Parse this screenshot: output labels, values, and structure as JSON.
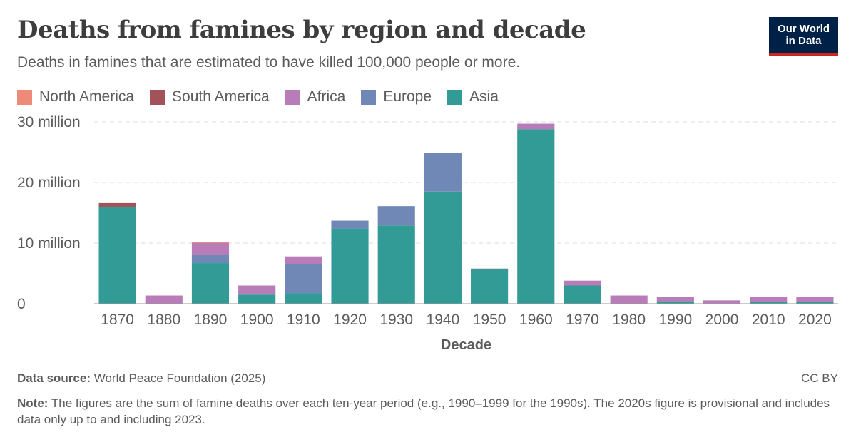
{
  "header": {
    "title": "Deaths from famines by region and decade",
    "subtitle": "Deaths in famines that are estimated to have killed 100,000 people or more.",
    "logo_line1": "Our World",
    "logo_line2": "in Data",
    "logo_bg": "#002147",
    "logo_accent": "#ce261e"
  },
  "legend": [
    {
      "label": "North America",
      "color": "#ee8b78"
    },
    {
      "label": "South America",
      "color": "#a2535a"
    },
    {
      "label": "Africa",
      "color": "#b87db8"
    },
    {
      "label": "Europe",
      "color": "#7088b5"
    },
    {
      "label": "Asia",
      "color": "#329b96"
    }
  ],
  "chart_data": {
    "type": "bar",
    "stacked": true,
    "xlabel": "Decade",
    "ylabel": "",
    "ylim": [
      0,
      30000000
    ],
    "yticks": [
      0,
      10000000,
      20000000,
      30000000
    ],
    "ytick_labels": [
      "0",
      "10 million",
      "20 million",
      "30 million"
    ],
    "grid": true,
    "legend_position": "top-left",
    "categories": [
      "1870",
      "1880",
      "1890",
      "1900",
      "1910",
      "1920",
      "1930",
      "1940",
      "1950",
      "1960",
      "1970",
      "1980",
      "1990",
      "2000",
      "2010",
      "2020"
    ],
    "series": [
      {
        "name": "Asia",
        "color": "#329b96",
        "values": [
          16000000,
          0,
          6700000,
          1500000,
          1700000,
          12400000,
          12900000,
          18500000,
          5700000,
          28800000,
          3000000,
          0,
          400000,
          0,
          300000,
          300000
        ]
      },
      {
        "name": "Europe",
        "color": "#7088b5",
        "values": [
          0,
          0,
          1300000,
          0,
          4800000,
          1300000,
          3200000,
          6400000,
          0,
          0,
          0,
          0,
          0,
          0,
          0,
          0
        ]
      },
      {
        "name": "Africa",
        "color": "#b87db8",
        "values": [
          0,
          1350000,
          2000000,
          1500000,
          1300000,
          0,
          0,
          0,
          100000,
          900000,
          800000,
          1350000,
          700000,
          550000,
          800000,
          800000
        ]
      },
      {
        "name": "South America",
        "color": "#a2535a",
        "values": [
          600000,
          0,
          0,
          0,
          0,
          0,
          0,
          0,
          0,
          0,
          0,
          0,
          0,
          0,
          0,
          0
        ]
      },
      {
        "name": "North America",
        "color": "#ee8b78",
        "values": [
          0,
          0,
          200000,
          0,
          0,
          0,
          0,
          0,
          0,
          0,
          0,
          0,
          0,
          0,
          0,
          0
        ]
      }
    ]
  },
  "footer": {
    "source_label": "Data source:",
    "source_text": "World Peace Foundation (2025)",
    "license": "CC BY",
    "note_label": "Note:",
    "note_text": "The figures are the sum of famine deaths over each ten-year period (e.g., 1990–1999 for the 1990s). The 2020s figure is provisional and includes data only up to and including 2023."
  }
}
